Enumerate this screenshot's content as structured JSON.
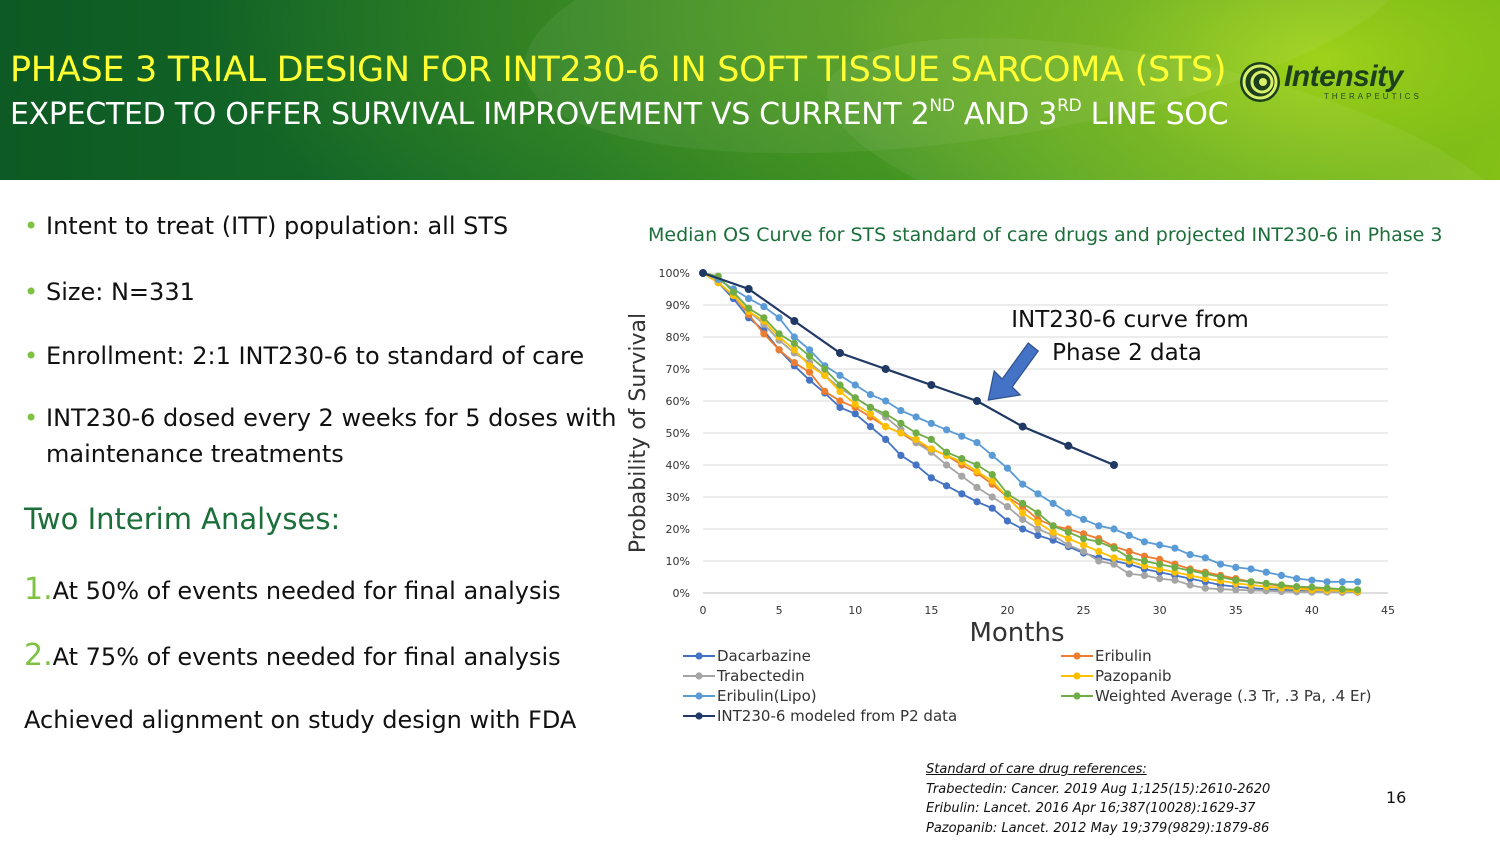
{
  "header": {
    "title_line1": "PHASE 3 TRIAL DESIGN FOR INT230-6 IN SOFT TISSUE SARCOMA (STS)",
    "title_line2_pre": "EXPECTED TO OFFER SURVIVAL IMPROVEMENT VS CURRENT 2",
    "title_line2_sup1": "ND",
    "title_line2_mid": " AND 3",
    "title_line2_sup2": "RD",
    "title_line2_post": " LINE SOC",
    "logo_text": "Intensity",
    "logo_subtext": "THERAPEUTICS"
  },
  "bullets": [
    "Intent to treat (ITT) population: all STS",
    "Size: N=331",
    "Enrollment: 2:1 INT230-6 to standard of care",
    "INT230-6 dosed every 2 weeks for 5 doses with maintenance treatments"
  ],
  "interim": {
    "heading": "Two Interim Analyses:",
    "items": [
      {
        "num": "1.",
        "text": "At 50% of events needed for final analysis"
      },
      {
        "num": "2.",
        "text": "At 75% of events needed for final analysis"
      }
    ]
  },
  "alignment_text": "Achieved alignment on study design with FDA",
  "references": {
    "heading": "Standard of care drug references:",
    "lines": [
      "Trabectedin: Cancer. 2019 Aug 1;125(15):2610-2620",
      "Eribulin: Lancet. 2016 Apr 16;387(10028):1629-37",
      "Pazopanib: Lancet. 2012 May 19;379(9829):1879-86"
    ]
  },
  "page_number": "16",
  "chart_data": {
    "type": "line",
    "title": "Median OS Curve for STS standard of care drugs and projected INT230-6 in Phase 3",
    "xlabel": "Months",
    "ylabel": "Probability of Survival",
    "xlim": [
      0,
      45
    ],
    "ylim": [
      0,
      1
    ],
    "x_ticks": [
      0,
      5,
      10,
      15,
      20,
      25,
      30,
      35,
      40,
      45
    ],
    "y_ticks": [
      "0%",
      "10%",
      "20%",
      "30%",
      "40%",
      "50%",
      "60%",
      "70%",
      "80%",
      "90%",
      "100%"
    ],
    "grid": "horizontal",
    "legend_position": "bottom",
    "annotation": {
      "line1": "INT230-6 curve from",
      "line2": "Phase 2 data",
      "arrow_target": [
        19,
        0.6
      ]
    },
    "series": [
      {
        "name": "Dacarbazine",
        "color": "#4472c4",
        "points": [
          [
            0,
            1.0
          ],
          [
            1,
            0.97
          ],
          [
            2,
            0.92
          ],
          [
            3,
            0.86
          ],
          [
            4,
            0.82
          ],
          [
            5,
            0.76
          ],
          [
            6,
            0.71
          ],
          [
            7,
            0.665
          ],
          [
            8,
            0.625
          ],
          [
            9,
            0.58
          ],
          [
            10,
            0.56
          ],
          [
            11,
            0.52
          ],
          [
            12,
            0.48
          ],
          [
            13,
            0.43
          ],
          [
            14,
            0.4
          ],
          [
            15,
            0.36
          ],
          [
            16,
            0.335
          ],
          [
            17,
            0.31
          ],
          [
            18,
            0.285
          ],
          [
            19,
            0.265
          ],
          [
            20,
            0.225
          ],
          [
            21,
            0.2
          ],
          [
            22,
            0.18
          ],
          [
            23,
            0.165
          ],
          [
            24,
            0.145
          ],
          [
            25,
            0.125
          ],
          [
            26,
            0.11
          ],
          [
            27,
            0.1
          ],
          [
            28,
            0.09
          ],
          [
            29,
            0.075
          ],
          [
            30,
            0.065
          ],
          [
            31,
            0.055
          ],
          [
            32,
            0.045
          ],
          [
            33,
            0.035
          ],
          [
            34,
            0.025
          ],
          [
            35,
            0.02
          ],
          [
            36,
            0.015
          ],
          [
            37,
            0.012
          ],
          [
            38,
            0.01
          ],
          [
            39,
            0.008
          ],
          [
            40,
            0.007
          ],
          [
            41,
            0.006
          ],
          [
            42,
            0.005
          ],
          [
            43,
            0.004
          ]
        ]
      },
      {
        "name": "Eribulin",
        "color": "#ed7d31",
        "points": [
          [
            0,
            1.0
          ],
          [
            1,
            0.97
          ],
          [
            2,
            0.93
          ],
          [
            3,
            0.87
          ],
          [
            4,
            0.81
          ],
          [
            5,
            0.76
          ],
          [
            6,
            0.72
          ],
          [
            7,
            0.69
          ],
          [
            8,
            0.63
          ],
          [
            9,
            0.6
          ],
          [
            10,
            0.58
          ],
          [
            11,
            0.55
          ],
          [
            12,
            0.52
          ],
          [
            13,
            0.5
          ],
          [
            14,
            0.47
          ],
          [
            15,
            0.45
          ],
          [
            16,
            0.43
          ],
          [
            17,
            0.4
          ],
          [
            18,
            0.375
          ],
          [
            19,
            0.34
          ],
          [
            20,
            0.3
          ],
          [
            21,
            0.27
          ],
          [
            22,
            0.23
          ],
          [
            23,
            0.21
          ],
          [
            24,
            0.2
          ],
          [
            25,
            0.185
          ],
          [
            26,
            0.17
          ],
          [
            27,
            0.145
          ],
          [
            28,
            0.13
          ],
          [
            29,
            0.115
          ],
          [
            30,
            0.105
          ],
          [
            31,
            0.09
          ],
          [
            32,
            0.075
          ],
          [
            33,
            0.065
          ],
          [
            34,
            0.055
          ],
          [
            35,
            0.045
          ],
          [
            36,
            0.035
          ],
          [
            37,
            0.028
          ],
          [
            38,
            0.022
          ],
          [
            39,
            0.017
          ],
          [
            40,
            0.013
          ],
          [
            41,
            0.01
          ],
          [
            42,
            0.008
          ],
          [
            43,
            0.005
          ]
        ]
      },
      {
        "name": "Trabectedin",
        "color": "#a5a5a5",
        "points": [
          [
            0,
            1.0
          ],
          [
            1,
            0.97
          ],
          [
            2,
            0.93
          ],
          [
            3,
            0.88
          ],
          [
            4,
            0.84
          ],
          [
            5,
            0.79
          ],
          [
            6,
            0.75
          ],
          [
            7,
            0.72
          ],
          [
            8,
            0.68
          ],
          [
            9,
            0.64
          ],
          [
            10,
            0.61
          ],
          [
            11,
            0.58
          ],
          [
            12,
            0.55
          ],
          [
            13,
            0.51
          ],
          [
            14,
            0.47
          ],
          [
            15,
            0.44
          ],
          [
            16,
            0.4
          ],
          [
            17,
            0.365
          ],
          [
            18,
            0.33
          ],
          [
            19,
            0.3
          ],
          [
            20,
            0.27
          ],
          [
            21,
            0.23
          ],
          [
            22,
            0.2
          ],
          [
            23,
            0.18
          ],
          [
            24,
            0.15
          ],
          [
            25,
            0.13
          ],
          [
            26,
            0.1
          ],
          [
            27,
            0.09
          ],
          [
            28,
            0.06
          ],
          [
            29,
            0.055
          ],
          [
            30,
            0.045
          ],
          [
            31,
            0.04
          ],
          [
            32,
            0.025
          ],
          [
            33,
            0.015
          ],
          [
            34,
            0.012
          ],
          [
            35,
            0.01
          ],
          [
            36,
            0.008
          ],
          [
            37,
            0.007
          ],
          [
            38,
            0.005
          ],
          [
            39,
            0.004
          ],
          [
            40,
            0.003
          ],
          [
            41,
            0.003
          ],
          [
            42,
            0.002
          ],
          [
            43,
            0.002
          ]
        ]
      },
      {
        "name": "Pazopanib",
        "color": "#ffc000",
        "points": [
          [
            0,
            1.0
          ],
          [
            1,
            0.97
          ],
          [
            2,
            0.93
          ],
          [
            3,
            0.88
          ],
          [
            4,
            0.85
          ],
          [
            5,
            0.8
          ],
          [
            6,
            0.76
          ],
          [
            7,
            0.71
          ],
          [
            8,
            0.68
          ],
          [
            9,
            0.63
          ],
          [
            10,
            0.59
          ],
          [
            11,
            0.56
          ],
          [
            12,
            0.52
          ],
          [
            13,
            0.5
          ],
          [
            14,
            0.48
          ],
          [
            15,
            0.45
          ],
          [
            16,
            0.43
          ],
          [
            17,
            0.41
          ],
          [
            18,
            0.38
          ],
          [
            19,
            0.35
          ],
          [
            20,
            0.3
          ],
          [
            21,
            0.25
          ],
          [
            22,
            0.22
          ],
          [
            23,
            0.19
          ],
          [
            24,
            0.17
          ],
          [
            25,
            0.15
          ],
          [
            26,
            0.13
          ],
          [
            27,
            0.11
          ],
          [
            28,
            0.1
          ],
          [
            29,
            0.085
          ],
          [
            30,
            0.075
          ],
          [
            31,
            0.065
          ],
          [
            32,
            0.055
          ],
          [
            33,
            0.045
          ],
          [
            34,
            0.038
          ],
          [
            35,
            0.03
          ],
          [
            36,
            0.025
          ],
          [
            37,
            0.02
          ],
          [
            38,
            0.016
          ],
          [
            39,
            0.013
          ],
          [
            40,
            0.01
          ],
          [
            41,
            0.008
          ],
          [
            42,
            0.007
          ],
          [
            43,
            0.005
          ]
        ]
      },
      {
        "name": "Eribulin(Lipo)",
        "color": "#5b9bd5",
        "points": [
          [
            0,
            1.0
          ],
          [
            1,
            0.98
          ],
          [
            2,
            0.95
          ],
          [
            3,
            0.92
          ],
          [
            4,
            0.895
          ],
          [
            5,
            0.86
          ],
          [
            6,
            0.8
          ],
          [
            7,
            0.76
          ],
          [
            8,
            0.71
          ],
          [
            9,
            0.68
          ],
          [
            10,
            0.65
          ],
          [
            11,
            0.62
          ],
          [
            12,
            0.6
          ],
          [
            13,
            0.57
          ],
          [
            14,
            0.55
          ],
          [
            15,
            0.53
          ],
          [
            16,
            0.51
          ],
          [
            17,
            0.49
          ],
          [
            18,
            0.47
          ],
          [
            19,
            0.43
          ],
          [
            20,
            0.39
          ],
          [
            21,
            0.34
          ],
          [
            22,
            0.31
          ],
          [
            23,
            0.28
          ],
          [
            24,
            0.25
          ],
          [
            25,
            0.23
          ],
          [
            26,
            0.21
          ],
          [
            27,
            0.2
          ],
          [
            28,
            0.18
          ],
          [
            29,
            0.16
          ],
          [
            30,
            0.15
          ],
          [
            31,
            0.14
          ],
          [
            32,
            0.12
          ],
          [
            33,
            0.11
          ],
          [
            34,
            0.09
          ],
          [
            35,
            0.08
          ],
          [
            36,
            0.075
          ],
          [
            37,
            0.065
          ],
          [
            38,
            0.055
          ],
          [
            39,
            0.045
          ],
          [
            40,
            0.04
          ],
          [
            41,
            0.035
          ],
          [
            42,
            0.035
          ],
          [
            43,
            0.035
          ]
        ]
      },
      {
        "name": "Weighted Average (.3 Tr, .3 Pa, .4 Er)",
        "color": "#70ad47",
        "points": [
          [
            0,
            1.0
          ],
          [
            1,
            0.99
          ],
          [
            2,
            0.94
          ],
          [
            3,
            0.89
          ],
          [
            4,
            0.86
          ],
          [
            5,
            0.81
          ],
          [
            6,
            0.78
          ],
          [
            7,
            0.74
          ],
          [
            8,
            0.7
          ],
          [
            9,
            0.65
          ],
          [
            10,
            0.61
          ],
          [
            11,
            0.58
          ],
          [
            12,
            0.56
          ],
          [
            13,
            0.53
          ],
          [
            14,
            0.5
          ],
          [
            15,
            0.48
          ],
          [
            16,
            0.44
          ],
          [
            17,
            0.42
          ],
          [
            18,
            0.4
          ],
          [
            19,
            0.37
          ],
          [
            20,
            0.31
          ],
          [
            21,
            0.28
          ],
          [
            22,
            0.25
          ],
          [
            23,
            0.21
          ],
          [
            24,
            0.19
          ],
          [
            25,
            0.17
          ],
          [
            26,
            0.16
          ],
          [
            27,
            0.14
          ],
          [
            28,
            0.11
          ],
          [
            29,
            0.1
          ],
          [
            30,
            0.09
          ],
          [
            31,
            0.08
          ],
          [
            32,
            0.07
          ],
          [
            33,
            0.06
          ],
          [
            34,
            0.05
          ],
          [
            35,
            0.04
          ],
          [
            36,
            0.035
          ],
          [
            37,
            0.03
          ],
          [
            38,
            0.025
          ],
          [
            39,
            0.02
          ],
          [
            40,
            0.018
          ],
          [
            41,
            0.015
          ],
          [
            42,
            0.012
          ],
          [
            43,
            0.01
          ]
        ]
      },
      {
        "name": "INT230-6 modeled from P2 data",
        "color": "#1f3864",
        "points": [
          [
            0,
            1.0
          ],
          [
            3,
            0.95
          ],
          [
            6,
            0.85
          ],
          [
            9,
            0.75
          ],
          [
            12,
            0.7
          ],
          [
            15,
            0.65
          ],
          [
            18,
            0.6
          ],
          [
            21,
            0.52
          ],
          [
            24,
            0.46
          ],
          [
            27,
            0.4
          ]
        ]
      }
    ]
  }
}
